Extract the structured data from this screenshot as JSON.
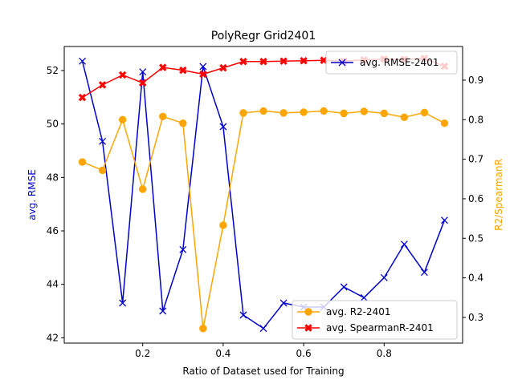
{
  "chart_data": {
    "type": "line",
    "title": "PolyRegr Grid2401",
    "xlabel": "Ratio of Dataset used for Training",
    "ylabel_left": "avg. RMSE",
    "ylabel_right": "R2/SpearmanR",
    "xlim": [
      0.005,
      0.995
    ],
    "ylim_left": [
      41.8,
      52.9
    ],
    "ylim_right": [
      0.235,
      0.985
    ],
    "x_ticks": [
      0.2,
      0.4,
      0.6,
      0.8
    ],
    "y_ticks_left": [
      42,
      44,
      46,
      48,
      50,
      52
    ],
    "y_ticks_right": [
      0.3,
      0.4,
      0.5,
      0.6,
      0.7,
      0.8,
      0.9
    ],
    "x": [
      0.05,
      0.1,
      0.15,
      0.2,
      0.25,
      0.3,
      0.35,
      0.4,
      0.45,
      0.5,
      0.55,
      0.6,
      0.65,
      0.7,
      0.75,
      0.8,
      0.85,
      0.9,
      0.95
    ],
    "legend_top": {
      "placement": "upper right",
      "entries": [
        "avg. RMSE-2401"
      ]
    },
    "legend_bottom": {
      "placement": "lower right",
      "entries": [
        "avg. R2-2401",
        "avg. SpearmanR-2401"
      ]
    },
    "series": [
      {
        "name": "avg. RMSE-2401",
        "axis": "left",
        "color": "#0000cc",
        "marker": "x",
        "values": [
          52.35,
          49.35,
          43.3,
          51.95,
          43.0,
          45.3,
          52.15,
          49.9,
          42.85,
          42.35,
          43.3,
          43.15,
          43.15,
          43.9,
          43.5,
          44.25,
          45.5,
          44.45,
          46.4
        ]
      },
      {
        "name": "avg. R2-2401",
        "axis": "right",
        "color": "#ffa500",
        "marker": "o",
        "values": [
          0.693,
          0.672,
          0.8,
          0.624,
          0.808,
          0.791,
          0.272,
          0.533,
          0.817,
          0.822,
          0.817,
          0.819,
          0.822,
          0.816,
          0.821,
          0.816,
          0.806,
          0.818,
          0.791
        ]
      },
      {
        "name": "avg. SpearmanR-2401",
        "axis": "right",
        "color": "#ff0000",
        "marker": "X",
        "values": [
          0.856,
          0.888,
          0.913,
          0.893,
          0.932,
          0.925,
          0.915,
          0.931,
          0.947,
          0.947,
          0.948,
          0.949,
          0.95,
          0.948,
          0.951,
          0.953,
          0.952,
          0.955,
          0.935
        ]
      }
    ]
  }
}
